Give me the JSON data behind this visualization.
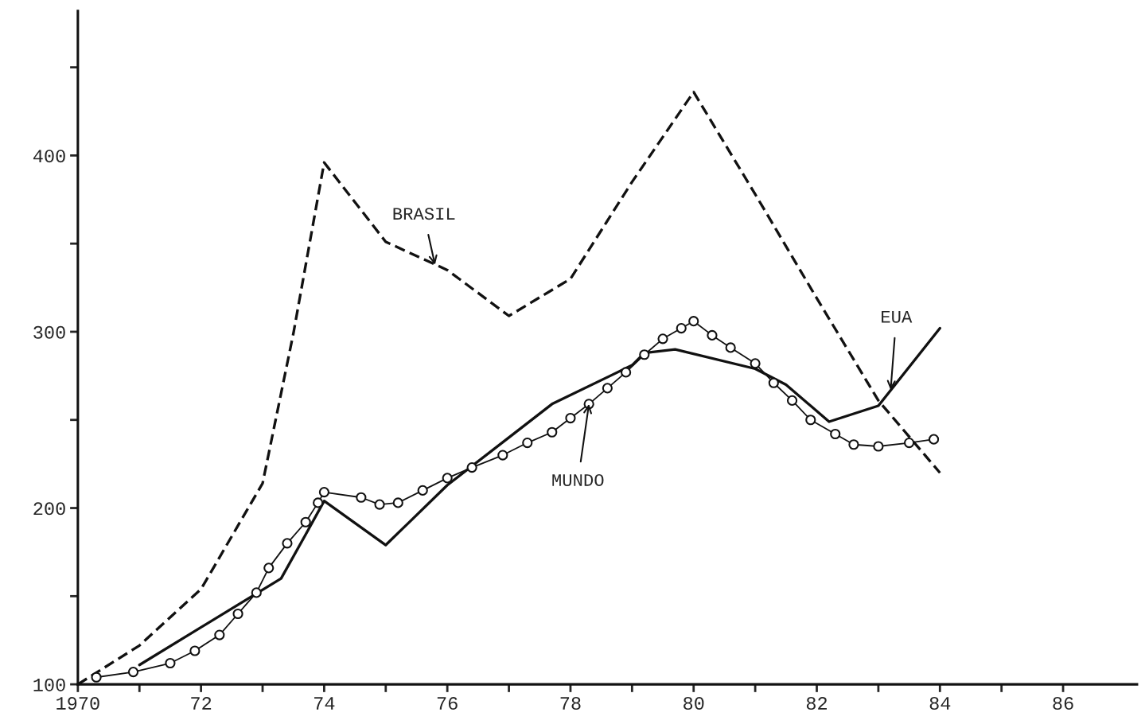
{
  "chart_data": {
    "type": "line",
    "series": [
      {
        "color": "#111111",
        "line_style": "dashed",
        "marker": "none",
        "x": [
          1970,
          1971,
          1972,
          1973,
          1973.5,
          1974,
          1975,
          1976,
          1977,
          1978,
          1979,
          1980,
          1981,
          1982,
          1983,
          1984
        ],
        "values": [
          100,
          122,
          154,
          214,
          299,
          396,
          351,
          335,
          309,
          330,
          385,
          436,
          378,
          319,
          261,
          220
        ]
      },
      {
        "color": "#111111",
        "line_style": "solid",
        "marker": "none",
        "x": [
          1971,
          1972.5,
          1973.3,
          1973.7,
          1974,
          1975,
          1976,
          1977,
          1977.7,
          1979,
          1979.2,
          1979.7,
          1981,
          1981.5,
          1982.2,
          1983,
          1984
        ],
        "values": [
          111,
          143,
          160,
          185,
          204,
          179,
          213,
          240,
          259,
          281,
          288,
          290,
          279,
          270,
          249,
          258,
          302
        ]
      },
      {
        "color": "#111111",
        "line_style": "solid",
        "marker": "circle",
        "x": [
          1970.3,
          1970.9,
          1971.5,
          1971.9,
          1972.3,
          1972.6,
          1972.9,
          1973.1,
          1973.4,
          1973.7,
          1973.9,
          1974,
          1974.6,
          1974.9,
          1975.2,
          1975.6,
          1976,
          1976.4,
          1976.9,
          1977.3,
          1977.7,
          1978,
          1978.3,
          1978.6,
          1978.9,
          1979.2,
          1979.5,
          1979.8,
          1980,
          1980.3,
          1980.6,
          1981,
          1981.3,
          1981.6,
          1981.9,
          1982.3,
          1982.6,
          1983,
          1983.5,
          1983.9
        ],
        "values": [
          104,
          107,
          112,
          119,
          128,
          140,
          152,
          166,
          180,
          192,
          203,
          209,
          206,
          202,
          203,
          210,
          217,
          223,
          230,
          237,
          243,
          251,
          259,
          268,
          277,
          287,
          296,
          302,
          306,
          298,
          291,
          282,
          271,
          261,
          250,
          242,
          236,
          235,
          237,
          239
        ]
      }
    ],
    "annotations": [
      {
        "text": "BRASIL",
        "x": 1975.8,
        "y": 338
      },
      {
        "text": "EUA",
        "x": 1983.2,
        "y": 267
      },
      {
        "text": "MUNDO",
        "x": 1978.3,
        "y": 259
      }
    ],
    "xlim": [
      1970,
      1987.2
    ],
    "xticks": [
      {
        "value": 1970,
        "label": "1970"
      },
      {
        "value": 1971,
        "label": null
      },
      {
        "value": 1972,
        "label": "72"
      },
      {
        "value": 1973,
        "label": null
      },
      {
        "value": 1974,
        "label": "74"
      },
      {
        "value": 1975,
        "label": null
      },
      {
        "value": 1976,
        "label": "76"
      },
      {
        "value": 1977,
        "label": null
      },
      {
        "value": 1978,
        "label": "78"
      },
      {
        "value": 1979,
        "label": null
      },
      {
        "value": 1980,
        "label": "80"
      },
      {
        "value": 1981,
        "label": null
      },
      {
        "value": 1982,
        "label": "82"
      },
      {
        "value": 1983,
        "label": null
      },
      {
        "value": 1984,
        "label": "84"
      },
      {
        "value": 1985,
        "label": null
      },
      {
        "value": 1986,
        "label": "86"
      }
    ],
    "ylim": [
      100,
      482
    ],
    "yticks": [
      100,
      {
        "value": 150,
        "label": null
      },
      200,
      {
        "value": 250,
        "label": null
      },
      300,
      {
        "value": 350,
        "label": null
      },
      400,
      {
        "value": 450,
        "label": null
      }
    ],
    "grid": false,
    "legend": false
  }
}
